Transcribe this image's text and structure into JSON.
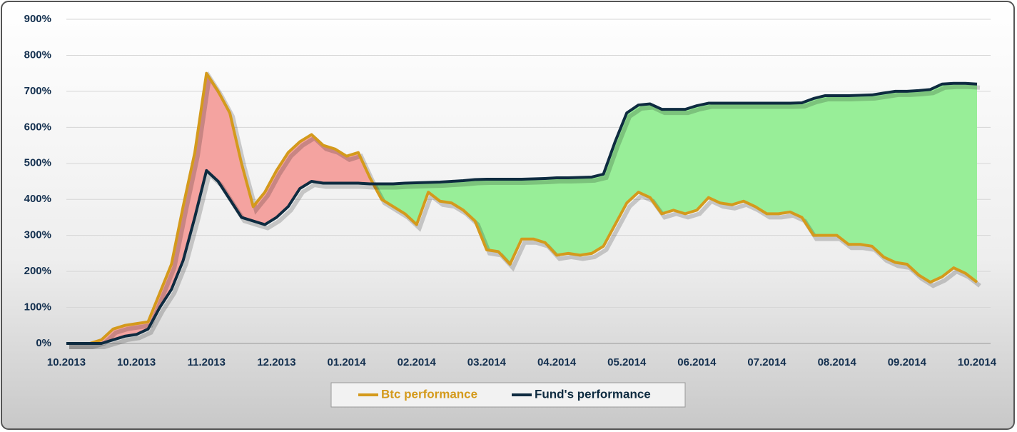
{
  "chart_data": {
    "type": "line",
    "categories": [
      "10.2013",
      null,
      null,
      null,
      null,
      null,
      "10.2013",
      null,
      null,
      null,
      null,
      null,
      "11.2013",
      null,
      null,
      null,
      null,
      null,
      "12.2013",
      null,
      null,
      null,
      null,
      null,
      "01.2014",
      null,
      null,
      null,
      null,
      null,
      "02.2014",
      null,
      null,
      null,
      null,
      null,
      "03.2014",
      null,
      null,
      null,
      null,
      null,
      "04.2014",
      null,
      null,
      null,
      null,
      null,
      "05.2014",
      null,
      null,
      null,
      null,
      null,
      "06.2014",
      null,
      null,
      null,
      null,
      null,
      "07.2014",
      null,
      null,
      null,
      null,
      null,
      "08.2014",
      null,
      null,
      null,
      null,
      null,
      "09.2014",
      null,
      null,
      null,
      null,
      null,
      "10.2014"
    ],
    "series": [
      {
        "name": "Btc performance",
        "color": "#d49a1c",
        "values": [
          0,
          0,
          0,
          10,
          40,
          50,
          55,
          60,
          140,
          220,
          380,
          530,
          750,
          700,
          640,
          500,
          380,
          420,
          480,
          530,
          560,
          580,
          550,
          540,
          520,
          530,
          460,
          400,
          380,
          360,
          330,
          420,
          395,
          390,
          370,
          340,
          260,
          255,
          220,
          290,
          290,
          280,
          245,
          250,
          245,
          250,
          270,
          330,
          390,
          420,
          405,
          360,
          370,
          360,
          370,
          405,
          390,
          385,
          395,
          380,
          360,
          360,
          365,
          350,
          300,
          300,
          300,
          275,
          275,
          270,
          240,
          225,
          220,
          190,
          170,
          185,
          210,
          195,
          170
        ]
      },
      {
        "name": "Fund's performance",
        "color": "#0e2b40",
        "values": [
          0,
          0,
          0,
          0,
          10,
          20,
          25,
          40,
          100,
          150,
          230,
          350,
          480,
          450,
          400,
          350,
          340,
          330,
          350,
          380,
          430,
          450,
          445,
          445,
          445,
          445,
          443,
          443,
          443,
          445,
          446,
          447,
          448,
          450,
          452,
          455,
          456,
          456,
          456,
          456,
          457,
          458,
          460,
          460,
          461,
          462,
          470,
          560,
          640,
          662,
          665,
          650,
          650,
          650,
          660,
          667,
          667,
          667,
          667,
          667,
          667,
          667,
          667,
          668,
          680,
          688,
          688,
          688,
          689,
          690,
          695,
          700,
          700,
          702,
          705,
          720,
          722,
          722,
          720
        ]
      }
    ],
    "ylim": [
      0,
      900
    ],
    "yticks": [
      {
        "value": 0,
        "label": "0%"
      },
      {
        "value": 100,
        "label": "100%"
      },
      {
        "value": 200,
        "label": "200%"
      },
      {
        "value": 300,
        "label": "300%"
      },
      {
        "value": 400,
        "label": "400%"
      },
      {
        "value": 500,
        "label": "500%"
      },
      {
        "value": 600,
        "label": "600%"
      },
      {
        "value": 700,
        "label": "700%"
      },
      {
        "value": 800,
        "label": "800%"
      },
      {
        "value": 900,
        "label": "900%"
      }
    ],
    "grid": true,
    "fill_above_color": "#f4a3a0",
    "fill_below_color": "#98ee98",
    "legend": "bottom"
  }
}
